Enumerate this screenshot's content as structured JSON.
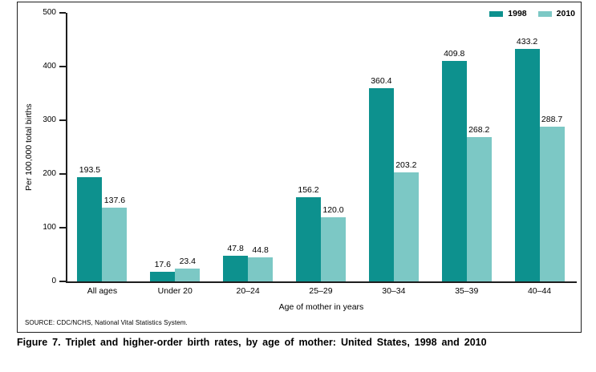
{
  "figure": {
    "caption": "Figure 7. Triplet and higher-order birth rates, by age of mother: United States, 1998 and 2010",
    "source": "SOURCE: CDC/NCHS, National Vital Statistics System."
  },
  "colors": {
    "series_1998": "#0d918e",
    "series_2010": "#7cc8c5",
    "axis": "#1e1e1e"
  },
  "chart_data": {
    "type": "bar",
    "title": "",
    "categories": [
      "All ages",
      "Under 20",
      "20–24",
      "25–29",
      "30–34",
      "35–39",
      "40–44"
    ],
    "series": [
      {
        "name": "1998",
        "color": "#0d918e",
        "values": [
          193.5,
          17.6,
          47.8,
          156.2,
          360.4,
          409.8,
          433.2
        ]
      },
      {
        "name": "2010",
        "color": "#7cc8c5",
        "values": [
          137.6,
          23.4,
          44.8,
          120.0,
          203.2,
          268.2,
          288.7
        ]
      }
    ],
    "xlabel": "Age of mother in years",
    "ylabel": "Per 100,000 total births",
    "ylim": [
      0,
      500
    ],
    "yticks": [
      0,
      100,
      200,
      300,
      400,
      500
    ],
    "grid": false,
    "legend_position": "top-right",
    "value_labels": true
  }
}
